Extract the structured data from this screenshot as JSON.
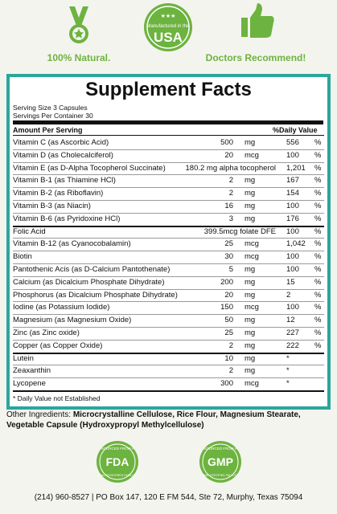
{
  "header": {
    "left_label": "100% Natural.",
    "badge_top": "Manufactured in the",
    "badge_main": "USA",
    "right_label": "Doctors Recommend!"
  },
  "facts": {
    "title": "Supplement Facts",
    "serving_size": "Serving Size 3 Capsules",
    "servings_per_container": "Servings Per Container 30",
    "amount_header": "Amount Per Serving",
    "dv_header": "%Daily Value",
    "rows": [
      [
        "Vitamin C (as Ascorbic Acid)",
        "500",
        "mg",
        "556",
        "%"
      ],
      [
        "Vitamin D (as Cholecalciferol)",
        "20",
        "mcg",
        "100",
        "%"
      ],
      [
        "Vitamin E (as D-Alpha Tocopherol Succinate)",
        "180.2 mg alpha tocopherol",
        null,
        "1,201",
        "%"
      ],
      [
        "Vitamin B-1 (as Thiamine HCl)",
        "2",
        "mg",
        "167",
        "%"
      ],
      [
        "Vitamin B-2 (as Riboflavin)",
        "2",
        "mg",
        "154",
        "%"
      ],
      [
        "Vitamin B-3 (as Niacin)",
        "16",
        "mg",
        "100",
        "%"
      ],
      [
        "Vitamin B-6 (as Pyridoxine HCl)",
        "3",
        "mg",
        "176",
        "%"
      ],
      [
        "Folic Acid",
        "399.5mcg folate DFE",
        null,
        "100",
        "%"
      ],
      [
        "Vitamin B-12 (as Cyanocobalamin)",
        "25",
        "mcg",
        "1,042",
        "%"
      ],
      [
        "Biotin",
        "30",
        "mcg",
        "100",
        "%"
      ],
      [
        "Pantothenic Acis (as D-Calcium Pantothenate)",
        "5",
        "mg",
        "100",
        "%"
      ],
      [
        "Calcium (as Dicalcium Phosphate Dihydrate)",
        "200",
        "mg",
        "15",
        "%"
      ],
      [
        "Phosphorus (as Dicalcium Phosphate Dihydrate)",
        "20",
        "mg",
        "2",
        "%"
      ],
      [
        "Iodine (as Potassium Iodide)",
        "150",
        "mcg",
        "100",
        "%"
      ],
      [
        "Magnesium (as Magnesium Oxide)",
        "50",
        "mg",
        "12",
        "%"
      ],
      [
        "Zinc (as Zinc oxide)",
        "25",
        "mg",
        "227",
        "%"
      ],
      [
        "Copper (as Copper Oxide)",
        "2",
        "mg",
        "222",
        "%"
      ],
      [
        "Lutein",
        "10",
        "mg",
        "*",
        null
      ],
      [
        "Zeaxanthin",
        "2",
        "mg",
        "*",
        null
      ],
      [
        "Lycopene",
        "300",
        "mcg",
        "*",
        null
      ]
    ],
    "footnote": "* Daily Value not Established"
  },
  "other_ingredients": {
    "label": "Other Ingredients:",
    "text": "Microcrystalline Cellulose, Rice Flour, Magnesium Stearate, Vegetable Capsule (Hydroxypropyl Methylcellulose)"
  },
  "badges": [
    {
      "top": "SOURCED FROM A",
      "main": "FDA",
      "bottom": "FDA REGISTERED FACILITY"
    },
    {
      "top": "SOURCED FROM A",
      "main": "GMP",
      "bottom": "GMP CERTIFIED FACILITY"
    }
  ],
  "footer": "(214) 960-8527 | PO Box 147, 120 E FM 544, Ste 72, Murphy, Texas 75094"
}
